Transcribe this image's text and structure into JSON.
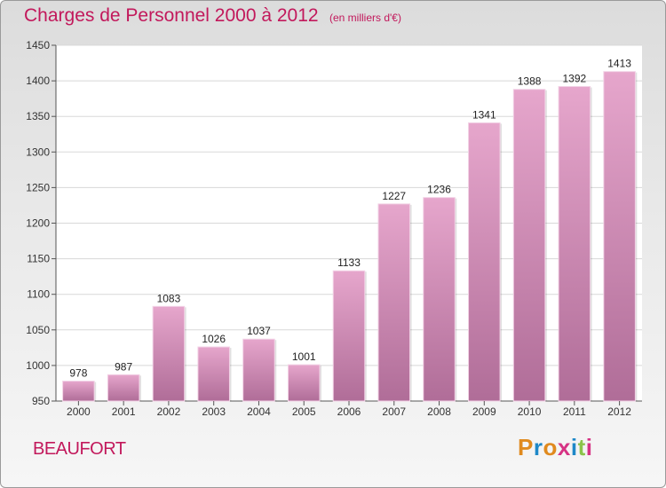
{
  "header": {
    "title": "Charges de Personnel 2000 à 2012",
    "subtitle": "(en milliers d'€)"
  },
  "footer": {
    "commune": "BEAUFORT",
    "logo_text": "Proxiti"
  },
  "colors": {
    "accent": "#c2185b",
    "bar_top": "#e6a6cc",
    "bar_bottom": "#b06d98",
    "logo_letters": [
      "#e08a1e",
      "#1e88c8",
      "#e08a1e",
      "#d63384",
      "#1e88c8",
      "#8bc34a",
      "#d63384"
    ]
  },
  "chart_data": {
    "type": "bar",
    "title": "Charges de Personnel 2000 à 2012",
    "subtitle": "(en milliers d'€)",
    "xlabel": "",
    "ylabel": "",
    "categories": [
      "2000",
      "2001",
      "2002",
      "2003",
      "2004",
      "2005",
      "2006",
      "2007",
      "2008",
      "2009",
      "2010",
      "2011",
      "2012"
    ],
    "values": [
      978,
      987,
      1083,
      1026,
      1037,
      1001,
      1133,
      1227,
      1236,
      1341,
      1388,
      1392,
      1413
    ],
    "ylim": [
      950,
      1450
    ],
    "yticks": [
      950,
      1000,
      1050,
      1100,
      1150,
      1200,
      1250,
      1300,
      1350,
      1400,
      1450
    ],
    "grid": true,
    "legend": "none"
  }
}
